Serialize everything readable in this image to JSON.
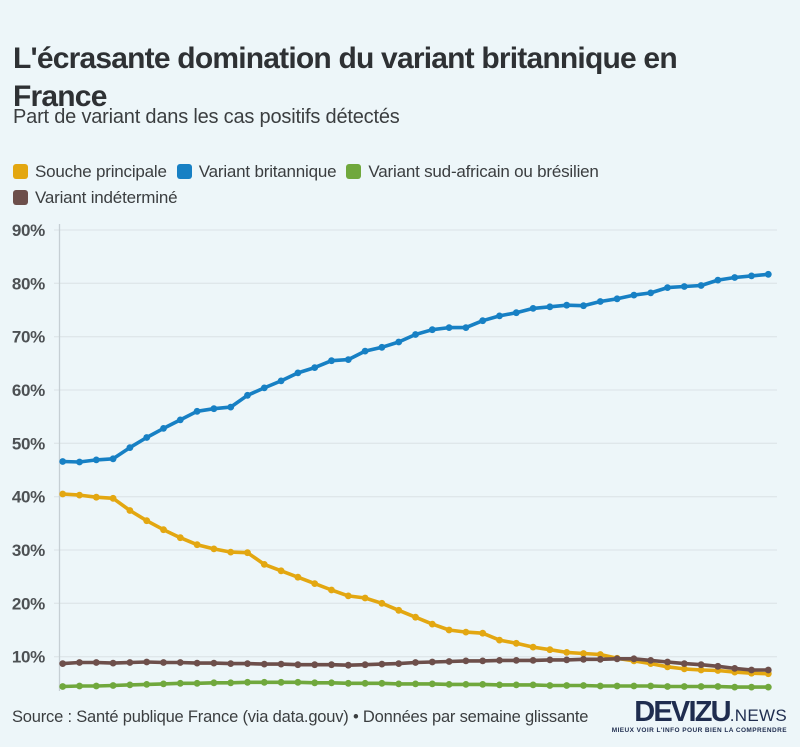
{
  "header": {
    "title_lines": [
      "L'écrasante domination du variant britannique en",
      "France"
    ],
    "subtitle": "Part de variant dans les cas positifs détectés"
  },
  "legend": {
    "items": [
      {
        "label": "Souche principale",
        "color": "#e3a711"
      },
      {
        "label": "Variant britannique",
        "color": "#1780c4"
      },
      {
        "label": "Variant sud-africain ou brésilien",
        "color": "#70a83d"
      },
      {
        "label": "Variant indéterminé",
        "color": "#6d4f4b"
      }
    ]
  },
  "chart_data": {
    "type": "line",
    "title": "L'écrasante domination du variant britannique en France",
    "subtitle": "Part de variant dans les cas positifs détectés",
    "xlabel": "",
    "ylabel": "",
    "x_axis": {
      "tick_labels_visible": false,
      "num_points": 43,
      "note_visible_on_chart": ""
    },
    "y_axis": {
      "tick_labels": [
        "90%",
        "80%",
        "70%",
        "60%",
        "50%",
        "40%",
        "30%",
        "20%",
        "10%"
      ],
      "tick_values": [
        90,
        80,
        70,
        60,
        50,
        40,
        30,
        20,
        10
      ],
      "unit": "%"
    },
    "grid": "horizontal",
    "legend_position": "top",
    "marker": "circle",
    "series": [
      {
        "name": "Souche principale",
        "color": "#e3a711",
        "values": [
          40.5,
          40.3,
          39.9,
          39.7,
          37.4,
          35.5,
          33.8,
          32.3,
          31.0,
          30.2,
          29.6,
          29.5,
          27.3,
          26.1,
          24.9,
          23.7,
          22.5,
          21.4,
          21.0,
          20.0,
          18.7,
          17.4,
          16.1,
          15.0,
          14.6,
          14.4,
          13.1,
          12.5,
          11.8,
          11.3,
          10.8,
          10.6,
          10.4,
          9.7,
          9.2,
          8.7,
          8.1,
          7.7,
          7.5,
          7.4,
          7.1,
          6.9,
          6.8
        ]
      },
      {
        "name": "Variant britannique",
        "color": "#1780c4",
        "values": [
          46.6,
          46.5,
          46.9,
          47.1,
          49.2,
          51.1,
          52.8,
          54.4,
          56.0,
          56.5,
          56.8,
          59.0,
          60.4,
          61.7,
          63.2,
          64.2,
          65.5,
          65.7,
          67.3,
          68.0,
          69.0,
          70.4,
          71.3,
          71.7,
          71.7,
          73.0,
          73.9,
          74.5,
          75.3,
          75.6,
          75.9,
          75.8,
          76.6,
          77.1,
          77.8,
          78.2,
          79.2,
          79.4,
          79.6,
          80.6,
          81.1,
          81.4,
          81.7
        ]
      },
      {
        "name": "Variant sud-africain ou brésilien",
        "color": "#70a83d",
        "values": [
          4.4,
          4.5,
          4.5,
          4.6,
          4.7,
          4.8,
          4.9,
          5.0,
          5.0,
          5.1,
          5.1,
          5.2,
          5.2,
          5.2,
          5.2,
          5.1,
          5.1,
          5.0,
          5.0,
          5.0,
          4.9,
          4.9,
          4.9,
          4.8,
          4.8,
          4.8,
          4.7,
          4.7,
          4.7,
          4.6,
          4.6,
          4.6,
          4.5,
          4.5,
          4.5,
          4.5,
          4.4,
          4.4,
          4.4,
          4.4,
          4.3,
          4.3,
          4.3
        ]
      },
      {
        "name": "Variant indéterminé",
        "color": "#6d4f4b",
        "values": [
          8.7,
          8.9,
          8.9,
          8.8,
          8.9,
          9.0,
          8.9,
          8.9,
          8.8,
          8.8,
          8.7,
          8.7,
          8.6,
          8.6,
          8.5,
          8.5,
          8.5,
          8.4,
          8.5,
          8.6,
          8.7,
          8.9,
          9.0,
          9.1,
          9.2,
          9.2,
          9.3,
          9.3,
          9.3,
          9.4,
          9.4,
          9.5,
          9.5,
          9.6,
          9.6,
          9.3,
          9.0,
          8.7,
          8.5,
          8.2,
          7.8,
          7.5,
          7.5
        ]
      }
    ]
  },
  "footer": {
    "source": "Source : Santé publique France (via data.gouv) • Données par semaine glissante",
    "logo": {
      "brand": "DEVIZU",
      "suffix": ".NEWS",
      "tagline": "MIEUX VOIR L'INFO POUR BIEN LA COMPRENDRE"
    }
  },
  "colors": {
    "background": "#edf6f9",
    "grid": "#dfe7ea",
    "axis": "#c6cfd4",
    "tick_label": "#4d5154",
    "title": "#2e3134",
    "text": "#3b3e40",
    "logo": "#1f2d4f"
  }
}
